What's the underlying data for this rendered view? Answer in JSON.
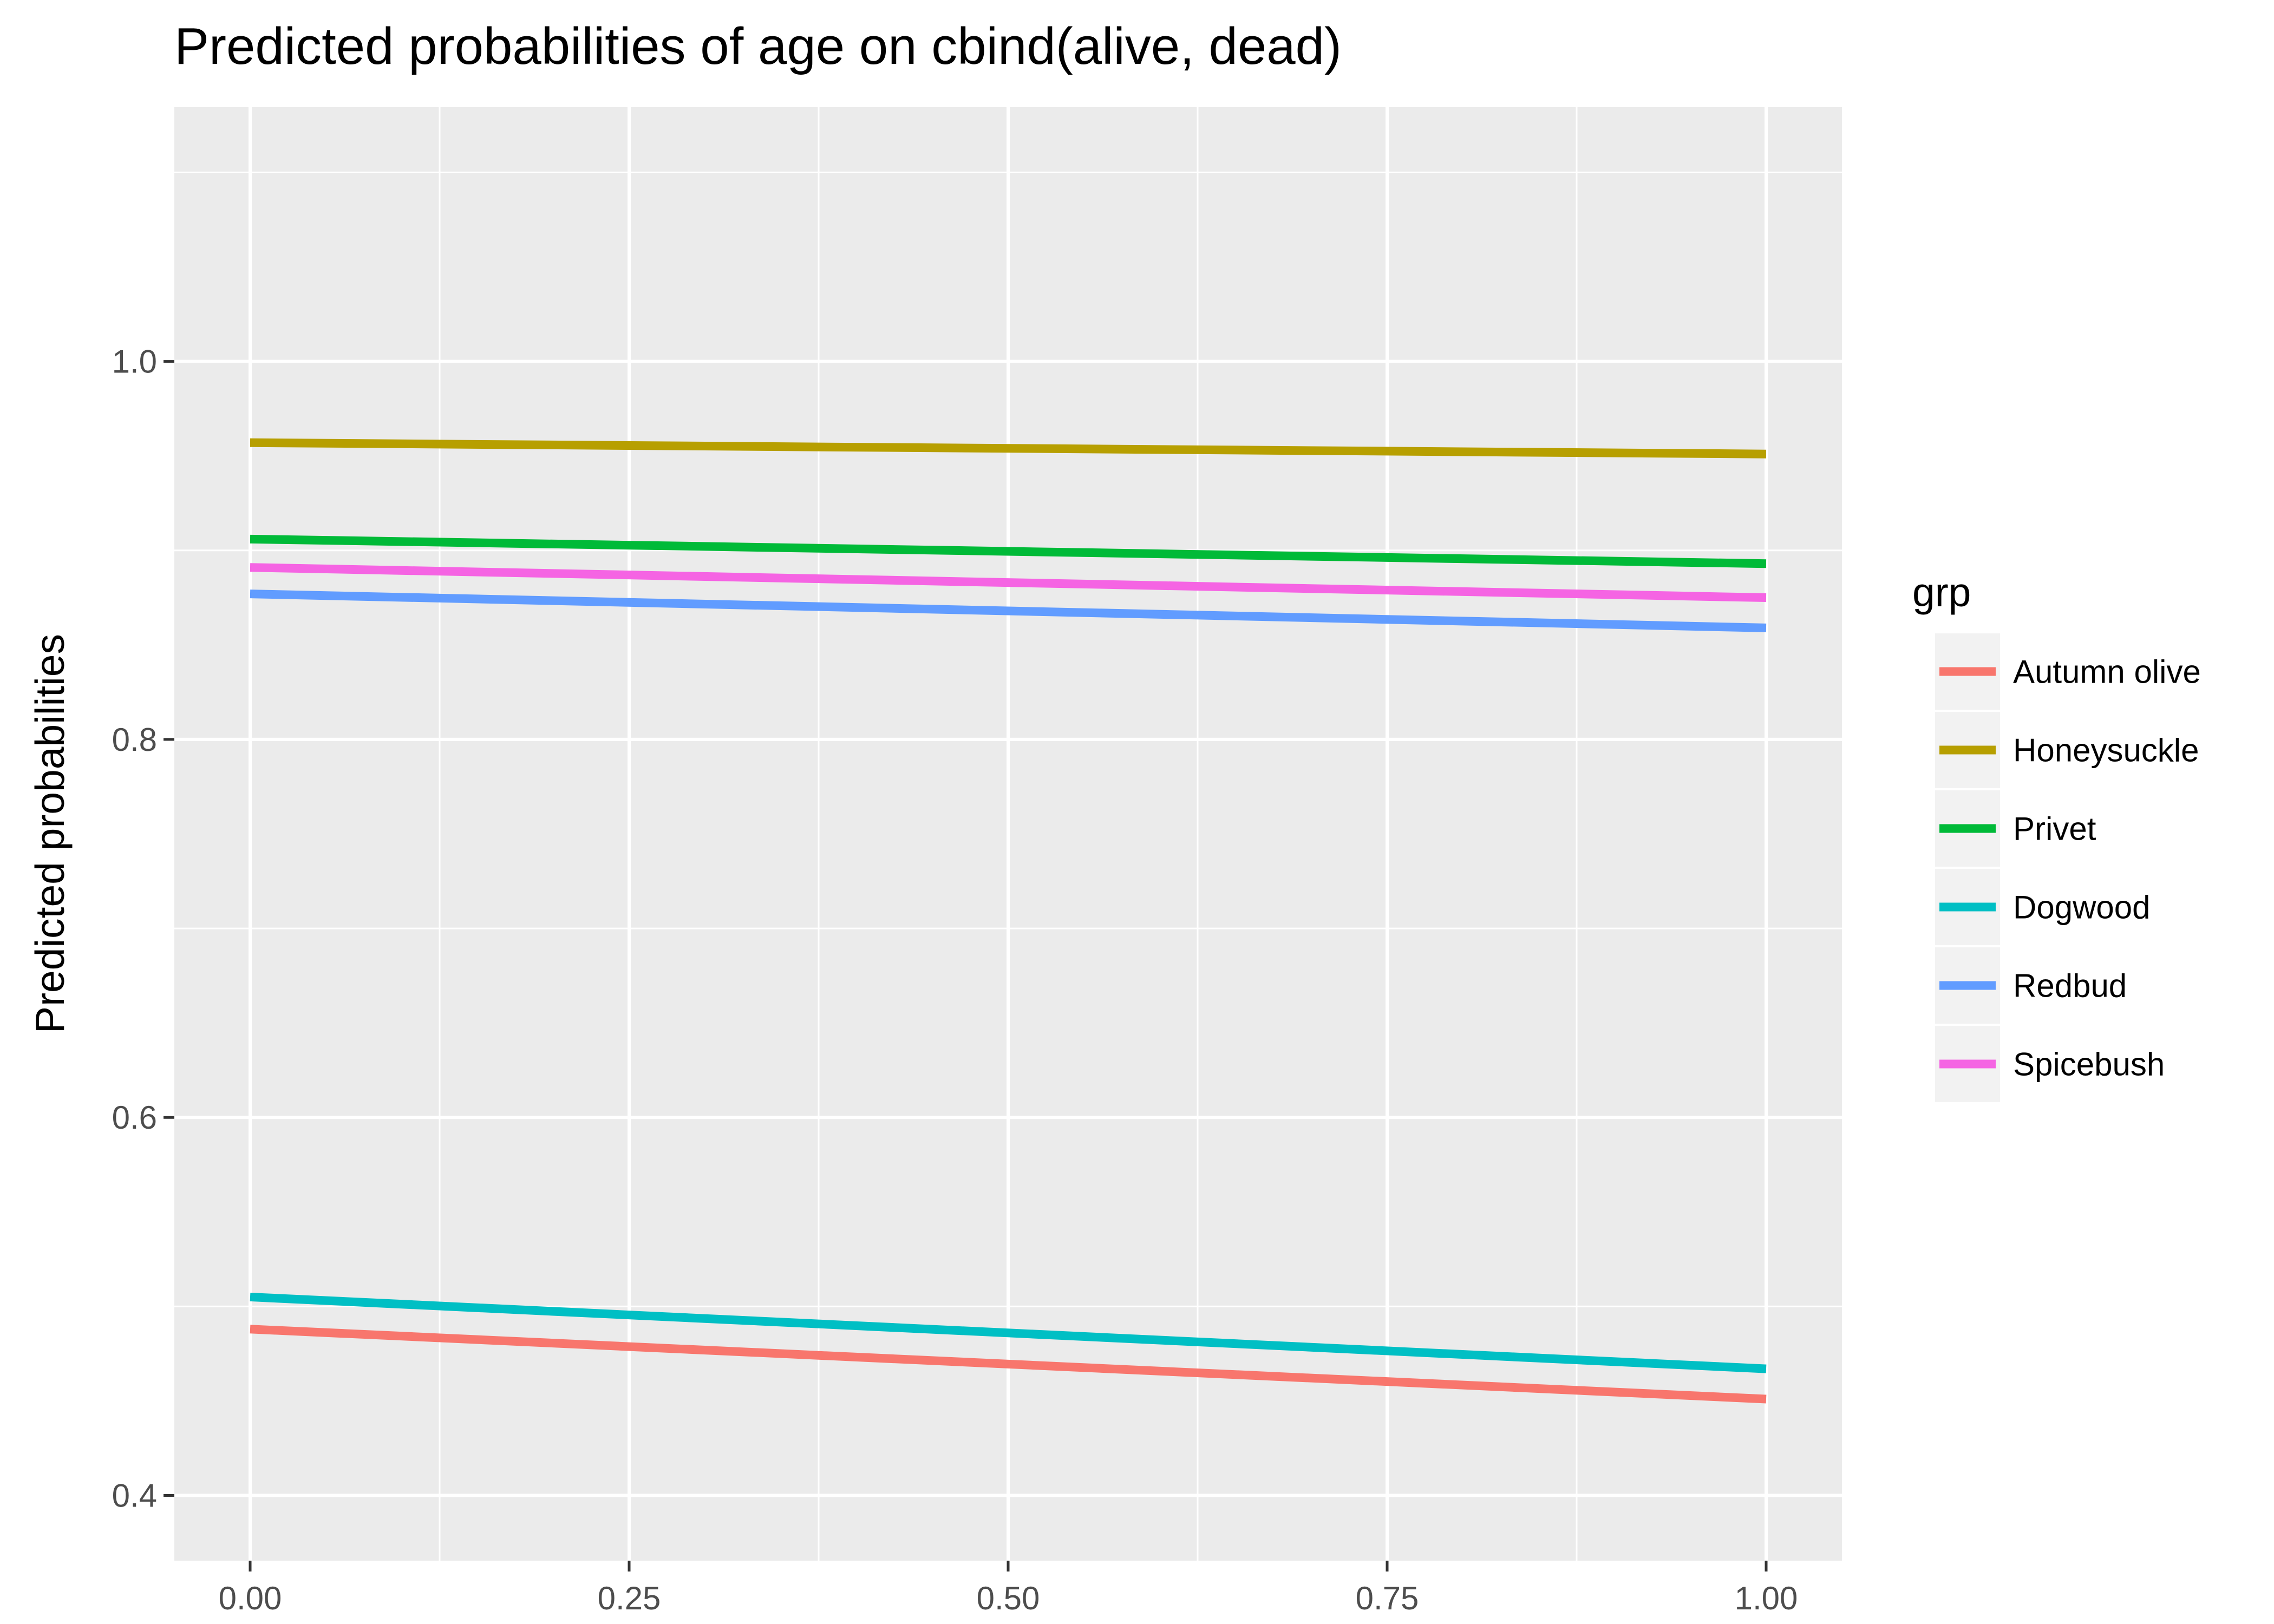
{
  "chart_data": {
    "type": "line",
    "title": "Predicted probabilities of age on cbind(alive, dead)",
    "xlabel": "",
    "ylabel": "Predicted probabilities",
    "xlim": [
      -0.05,
      1.05
    ],
    "ylim": [
      0.3655,
      1.1345
    ],
    "x_ticks": [
      0,
      0.25,
      0.5,
      0.75,
      1
    ],
    "x_tick_labels": [
      "0.00",
      "0.25",
      "0.50",
      "0.75",
      "1.00"
    ],
    "x_minor": [
      0.125,
      0.375,
      0.625,
      0.875
    ],
    "y_ticks": [
      0.4,
      0.6,
      0.8,
      1.0
    ],
    "y_tick_labels": [
      "0.4",
      "0.6",
      "0.8",
      "1.0"
    ],
    "y_minor": [
      0.5,
      0.7,
      0.9,
      1.1
    ],
    "grid": true,
    "legend": {
      "title": "grp",
      "position": "right"
    },
    "series": [
      {
        "name": "Autumn olive",
        "color": "#F8766D",
        "x": [
          0,
          1
        ],
        "y": [
          0.488,
          0.451
        ]
      },
      {
        "name": "Honeysuckle",
        "color": "#B79F00",
        "x": [
          0,
          1
        ],
        "y": [
          0.957,
          0.951
        ]
      },
      {
        "name": "Privet",
        "color": "#00BA38",
        "x": [
          0,
          1
        ],
        "y": [
          0.906,
          0.893
        ]
      },
      {
        "name": "Dogwood",
        "color": "#00BFC4",
        "x": [
          0,
          1
        ],
        "y": [
          0.505,
          0.467
        ]
      },
      {
        "name": "Redbud",
        "color": "#619CFF",
        "x": [
          0,
          1
        ],
        "y": [
          0.877,
          0.859
        ]
      },
      {
        "name": "Spicebush",
        "color": "#F564E3",
        "x": [
          0,
          1
        ],
        "y": [
          0.891,
          0.875
        ]
      }
    ]
  }
}
